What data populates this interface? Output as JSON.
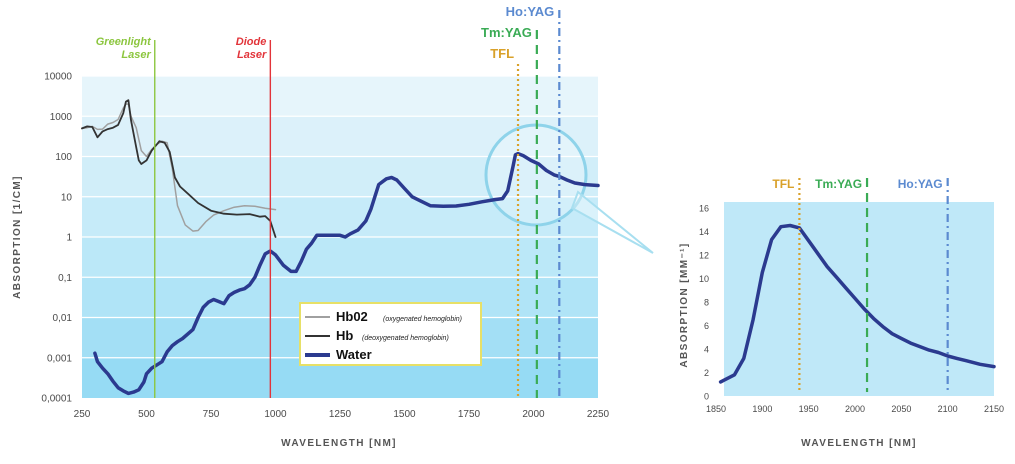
{
  "chart_data": [
    {
      "type": "line",
      "xlabel": "WAVELENGTH [NM]",
      "ylabel": "ABSORPTION [1/CM]",
      "xlim": [
        250,
        2250
      ],
      "x_ticks": [
        "250",
        "500",
        "750",
        "1000",
        "1250",
        "1500",
        "1750",
        "2000",
        "2250"
      ],
      "y_scale": "log",
      "ylim": [
        0.0001,
        10000
      ],
      "y_ticks": [
        "0,0001",
        "0,001",
        "0,01",
        "0,1",
        "1",
        "10",
        "100",
        "1000",
        "10000"
      ],
      "legend_position": "bottom-center",
      "lasers": [
        {
          "name": "Greenlight Laser",
          "lines": [
            "Greenlight",
            "Laser"
          ],
          "x": 532,
          "color": "#8cc63f",
          "style": "solid"
        },
        {
          "name": "Diode Laser",
          "lines": [
            "Diode",
            "Laser"
          ],
          "x": 980,
          "color": "#e2343a",
          "style": "solid"
        },
        {
          "name": "TFL",
          "lines": [
            "TFL"
          ],
          "x": 1940,
          "color": "#d9a12a",
          "style": "dotted"
        },
        {
          "name": "Tm:YAG",
          "lines": [
            "Tm:YAG"
          ],
          "x": 2013,
          "color": "#3aab55",
          "style": "dashed"
        },
        {
          "name": "Ho:YAG",
          "lines": [
            "Ho:YAG"
          ],
          "x": 2100,
          "color": "#5b8ad0",
          "style": "dashdot"
        }
      ],
      "series": [
        {
          "name": "Hb02",
          "description": "(oxygenated hemoglobin)",
          "color": "#a0a0a0",
          "width": 1.5,
          "points": [
            [
              250,
              500
            ],
            [
              270,
              520
            ],
            [
              290,
              560
            ],
            [
              310,
              470
            ],
            [
              330,
              480
            ],
            [
              350,
              640
            ],
            [
              370,
              700
            ],
            [
              390,
              830
            ],
            [
              410,
              1600
            ],
            [
              420,
              2000
            ],
            [
              430,
              2000
            ],
            [
              440,
              1000
            ],
            [
              460,
              520
            ],
            [
              480,
              140
            ],
            [
              500,
              100
            ],
            [
              520,
              150
            ],
            [
              540,
              200
            ],
            [
              560,
              240
            ],
            [
              580,
              220
            ],
            [
              600,
              50
            ],
            [
              620,
              6
            ],
            [
              650,
              2
            ],
            [
              680,
              1.4
            ],
            [
              700,
              1.45
            ],
            [
              730,
              2.4
            ],
            [
              760,
              3.5
            ],
            [
              800,
              4.5
            ],
            [
              840,
              5.5
            ],
            [
              880,
              6
            ],
            [
              920,
              5.8
            ],
            [
              960,
              5.2
            ],
            [
              1000,
              4.8
            ]
          ]
        },
        {
          "name": "Hb",
          "description": "(deoxygenated hemoglobin)",
          "color": "#333333",
          "width": 1.8,
          "points": [
            [
              250,
              500
            ],
            [
              270,
              560
            ],
            [
              290,
              540
            ],
            [
              310,
              300
            ],
            [
              330,
              420
            ],
            [
              350,
              480
            ],
            [
              370,
              520
            ],
            [
              390,
              610
            ],
            [
              410,
              1200
            ],
            [
              420,
              2300
            ],
            [
              430,
              2500
            ],
            [
              440,
              800
            ],
            [
              460,
              170
            ],
            [
              470,
              80
            ],
            [
              480,
              65
            ],
            [
              500,
              80
            ],
            [
              520,
              140
            ],
            [
              540,
              200
            ],
            [
              550,
              240
            ],
            [
              570,
              220
            ],
            [
              590,
              130
            ],
            [
              610,
              30
            ],
            [
              630,
              18
            ],
            [
              660,
              12
            ],
            [
              700,
              7
            ],
            [
              750,
              4.5
            ],
            [
              800,
              3.8
            ],
            [
              850,
              3.6
            ],
            [
              900,
              3.7
            ],
            [
              940,
              3.2
            ],
            [
              960,
              3.3
            ],
            [
              980,
              2.5
            ],
            [
              1000,
              1
            ]
          ]
        },
        {
          "name": "Water",
          "color": "#2b3a8f",
          "width": 3.5,
          "points": [
            [
              300,
              0.0013
            ],
            [
              310,
              0.0008
            ],
            [
              330,
              0.00055
            ],
            [
              350,
              0.0004
            ],
            [
              370,
              0.00026
            ],
            [
              390,
              0.00018
            ],
            [
              410,
              0.00015
            ],
            [
              430,
              0.00013
            ],
            [
              450,
              0.00014
            ],
            [
              470,
              0.00016
            ],
            [
              490,
              0.00025
            ],
            [
              500,
              0.0004
            ],
            [
              520,
              0.00055
            ],
            [
              560,
              0.0008
            ],
            [
              580,
              0.0014
            ],
            [
              600,
              0.002
            ],
            [
              620,
              0.0025
            ],
            [
              640,
              0.003
            ],
            [
              680,
              0.005
            ],
            [
              700,
              0.01
            ],
            [
              720,
              0.018
            ],
            [
              740,
              0.024
            ],
            [
              760,
              0.028
            ],
            [
              780,
              0.025
            ],
            [
              800,
              0.022
            ],
            [
              820,
              0.035
            ],
            [
              840,
              0.042
            ],
            [
              860,
              0.048
            ],
            [
              880,
              0.052
            ],
            [
              900,
              0.065
            ],
            [
              920,
              0.1
            ],
            [
              940,
              0.2
            ],
            [
              960,
              0.38
            ],
            [
              980,
              0.45
            ],
            [
              1000,
              0.36
            ],
            [
              1030,
              0.2
            ],
            [
              1060,
              0.14
            ],
            [
              1080,
              0.14
            ],
            [
              1100,
              0.25
            ],
            [
              1120,
              0.5
            ],
            [
              1140,
              0.7
            ],
            [
              1160,
              1.1
            ],
            [
              1200,
              1.1
            ],
            [
              1250,
              1.1
            ],
            [
              1270,
              1
            ],
            [
              1290,
              1.2
            ],
            [
              1320,
              1.5
            ],
            [
              1350,
              2.5
            ],
            [
              1370,
              5
            ],
            [
              1400,
              20
            ],
            [
              1430,
              28
            ],
            [
              1450,
              30
            ],
            [
              1470,
              26
            ],
            [
              1500,
              16
            ],
            [
              1530,
              10
            ],
            [
              1560,
              8
            ],
            [
              1600,
              6
            ],
            [
              1650,
              5.8
            ],
            [
              1700,
              5.9
            ],
            [
              1750,
              6.5
            ],
            [
              1800,
              7.5
            ],
            [
              1850,
              8.5
            ],
            [
              1880,
              9
            ],
            [
              1900,
              14
            ],
            [
              1920,
              55
            ],
            [
              1930,
              110
            ],
            [
              1940,
              118
            ],
            [
              1960,
              105
            ],
            [
              1990,
              80
            ],
            [
              2020,
              65
            ],
            [
              2050,
              45
            ],
            [
              2080,
              35
            ],
            [
              2100,
              32
            ],
            [
              2130,
              26
            ],
            [
              2160,
              22
            ],
            [
              2200,
              20
            ],
            [
              2250,
              19
            ]
          ]
        }
      ]
    },
    {
      "type": "line",
      "xlabel": "WAVELENGTH [NM]",
      "ylabel": "ABSORPTION [MM⁻¹]",
      "xlim": [
        1850,
        2150
      ],
      "ylim": [
        0,
        16.5
      ],
      "x_ticks": [
        "1850",
        "1900",
        "1950",
        "2000",
        "2050",
        "2100",
        "2150"
      ],
      "y_ticks": [
        "0",
        "2",
        "4",
        "6",
        "8",
        "10",
        "12",
        "14",
        "16"
      ],
      "lasers": [
        {
          "name": "TFL",
          "lines": [
            "TFL"
          ],
          "x": 1940,
          "color": "#d9a12a",
          "style": "dotted"
        },
        {
          "name": "Tm:YAG",
          "lines": [
            "Tm:YAG"
          ],
          "x": 2013,
          "color": "#3aab55",
          "style": "dashed"
        },
        {
          "name": "Ho:YAG",
          "lines": [
            "Ho:YAG"
          ],
          "x": 2100,
          "color": "#5b8ad0",
          "style": "dashdot"
        }
      ],
      "series": [
        {
          "name": "Water",
          "color": "#2b3a8f",
          "width": 3.5,
          "points": [
            [
              1855,
              1.2
            ],
            [
              1870,
              1.8
            ],
            [
              1880,
              3.2
            ],
            [
              1890,
              6.5
            ],
            [
              1900,
              10.5
            ],
            [
              1910,
              13.3
            ],
            [
              1920,
              14.4
            ],
            [
              1930,
              14.5
            ],
            [
              1940,
              14.3
            ],
            [
              1950,
              13.2
            ],
            [
              1960,
              12.1
            ],
            [
              1970,
              11
            ],
            [
              1980,
              10.1
            ],
            [
              1990,
              9.2
            ],
            [
              2000,
              8.3
            ],
            [
              2010,
              7.4
            ],
            [
              2020,
              6.6
            ],
            [
              2030,
              5.9
            ],
            [
              2040,
              5.3
            ],
            [
              2050,
              4.9
            ],
            [
              2060,
              4.5
            ],
            [
              2070,
              4.2
            ],
            [
              2080,
              3.9
            ],
            [
              2090,
              3.7
            ],
            [
              2100,
              3.4
            ],
            [
              2110,
              3.2
            ],
            [
              2120,
              3
            ],
            [
              2135,
              2.7
            ],
            [
              2150,
              2.5
            ]
          ]
        }
      ]
    }
  ]
}
